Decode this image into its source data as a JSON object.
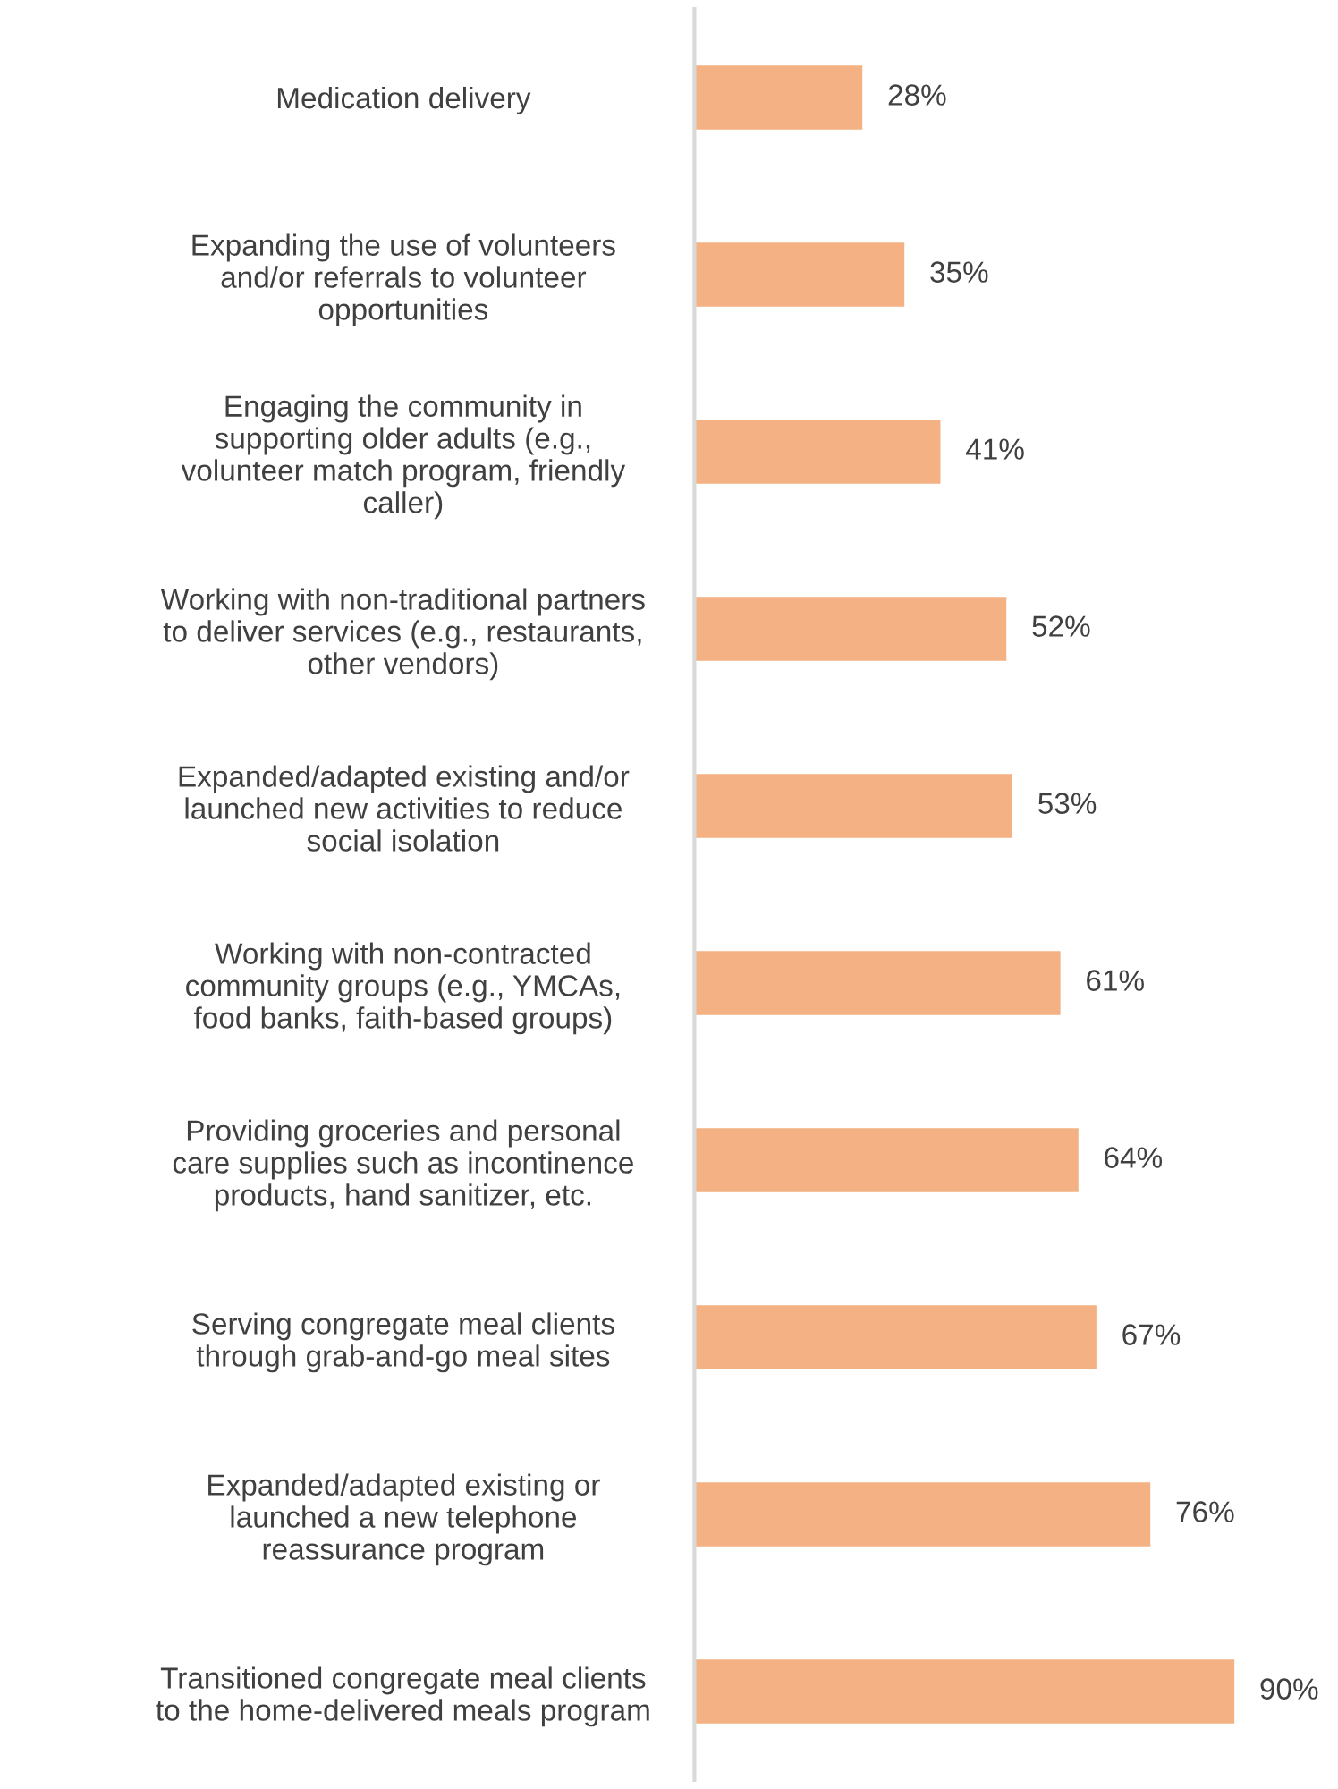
{
  "chart_data": {
    "type": "bar",
    "orientation": "horizontal",
    "categories": [
      "Medication delivery",
      "Expanding the use of volunteers\nand/or referrals to volunteer\nopportunities",
      "Engaging the community in\nsupporting older adults (e.g.,\nvolunteer match program, friendly\ncaller)",
      "Working with non-traditional partners\nto deliver services (e.g., restaurants,\nother vendors)",
      "Expanded/adapted existing and/or\nlaunched new activities to reduce\nsocial isolation",
      "Working with non-contracted\ncommunity groups (e.g., YMCAs,\nfood banks, faith-based groups)",
      "Providing groceries and personal\ncare supplies such as incontinence\nproducts, hand sanitizer, etc.",
      "Serving congregate meal clients\nthrough grab-and-go meal sites",
      "Expanded/adapted existing or\nlaunched a new telephone\nreassurance program",
      "Transitioned congregate meal clients\nto the home-delivered meals program"
    ],
    "values": [
      28,
      35,
      41,
      52,
      53,
      61,
      64,
      67,
      76,
      90
    ],
    "value_labels": [
      "28%",
      "35%",
      "41%",
      "52%",
      "53%",
      "61%",
      "64%",
      "67%",
      "76%",
      "90%"
    ],
    "color": "#f4b183",
    "tick_labels": "y",
    "grid": false,
    "legend": false
  }
}
